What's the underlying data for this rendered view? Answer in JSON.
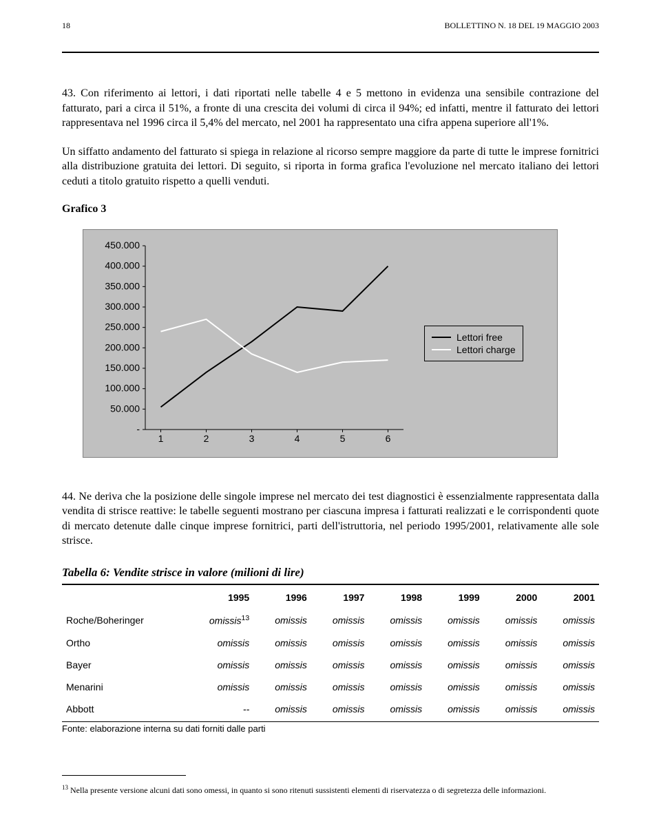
{
  "header": {
    "page_number": "18",
    "title": "BOLLETTINO N. 18 DEL 19 MAGGIO 2003"
  },
  "para1": "43. Con riferimento ai lettori, i dati riportati nelle tabelle 4 e 5 mettono in evidenza una sensibile contrazione del fatturato, pari a circa il 51%, a fronte di una crescita dei volumi di circa il 94%; ed infatti, mentre il fatturato dei lettori rappresentava nel 1996 circa il 5,4% del mercato, nel 2001 ha rappresentato una cifra appena superiore all'1%.",
  "para2": "Un siffatto andamento del fatturato si spiega in relazione al ricorso sempre maggiore da parte di tutte le imprese fornitrici alla distribuzione gratuita dei lettori. Di seguito, si riporta in forma grafica l'evoluzione nel mercato italiano dei lettori ceduti a titolo gratuito rispetto a quelli venduti.",
  "chart_title": "Grafico 3",
  "chart": {
    "type": "line",
    "background_color": "#c0c0c0",
    "plot_background": "#c0c0c0",
    "axis_color": "#000000",
    "grid_color": "#000000",
    "tick_font_family": "Arial",
    "tick_fontsize": 14,
    "x_categories": [
      "1",
      "2",
      "3",
      "4",
      "5",
      "6"
    ],
    "y_ticks": [
      "-",
      "50.000",
      "100.000",
      "150.000",
      "200.000",
      "250.000",
      "300.000",
      "350.000",
      "400.000",
      "450.000"
    ],
    "ylim": [
      0,
      450000
    ],
    "series": [
      {
        "name": "Lettori free",
        "color": "#000000",
        "width": 2,
        "values": [
          55000,
          140000,
          215000,
          300000,
          290000,
          400000
        ]
      },
      {
        "name": "Lettori charge",
        "color": "#ffffff",
        "width": 2,
        "values": [
          240000,
          270000,
          185000,
          140000,
          165000,
          170000
        ]
      }
    ],
    "legend": [
      "Lettori free",
      "Lettori charge"
    ]
  },
  "para3": "44. Ne deriva che la posizione delle singole imprese nel mercato dei test diagnostici è essenzialmente rappresentata dalla vendita di strisce reattive: le tabelle seguenti mostrano per ciascuna impresa i fatturati realizzati e le corrispondenti quote di mercato detenute dalle cinque imprese fornitrici, parti dell'istruttoria, nel periodo 1995/2001, relativamente alle sole strisce.",
  "table": {
    "title": "Tabella 6: Vendite strisce in valore (milioni di lire)",
    "columns": [
      "",
      "1995",
      "1996",
      "1997",
      "1998",
      "1999",
      "2000",
      "2001"
    ],
    "rows": [
      {
        "label": "Roche/Boheringer",
        "cells": [
          "omissis",
          "omissis",
          "omissis",
          "omissis",
          "omissis",
          "omissis",
          "omissis"
        ],
        "first_sup": "13"
      },
      {
        "label": "Ortho",
        "cells": [
          "omissis",
          "omissis",
          "omissis",
          "omissis",
          "omissis",
          "omissis",
          "omissis"
        ]
      },
      {
        "label": "Bayer",
        "cells": [
          "omissis",
          "omissis",
          "omissis",
          "omissis",
          "omissis",
          "omissis",
          "omissis"
        ]
      },
      {
        "label": "Menarini",
        "cells": [
          "omissis",
          "omissis",
          "omissis",
          "omissis",
          "omissis",
          "omissis",
          "omissis"
        ]
      },
      {
        "label": "Abbott",
        "cells": [
          "--",
          "omissis",
          "omissis",
          "omissis",
          "omissis",
          "omissis",
          "omissis"
        ]
      }
    ],
    "note": "Fonte: elaborazione interna su dati forniti dalle parti"
  },
  "footnote": {
    "number": "13",
    "text": " Nella presente versione alcuni dati sono omessi, in quanto si sono ritenuti sussistenti elementi di riservatezza o di segretezza delle informazioni."
  }
}
